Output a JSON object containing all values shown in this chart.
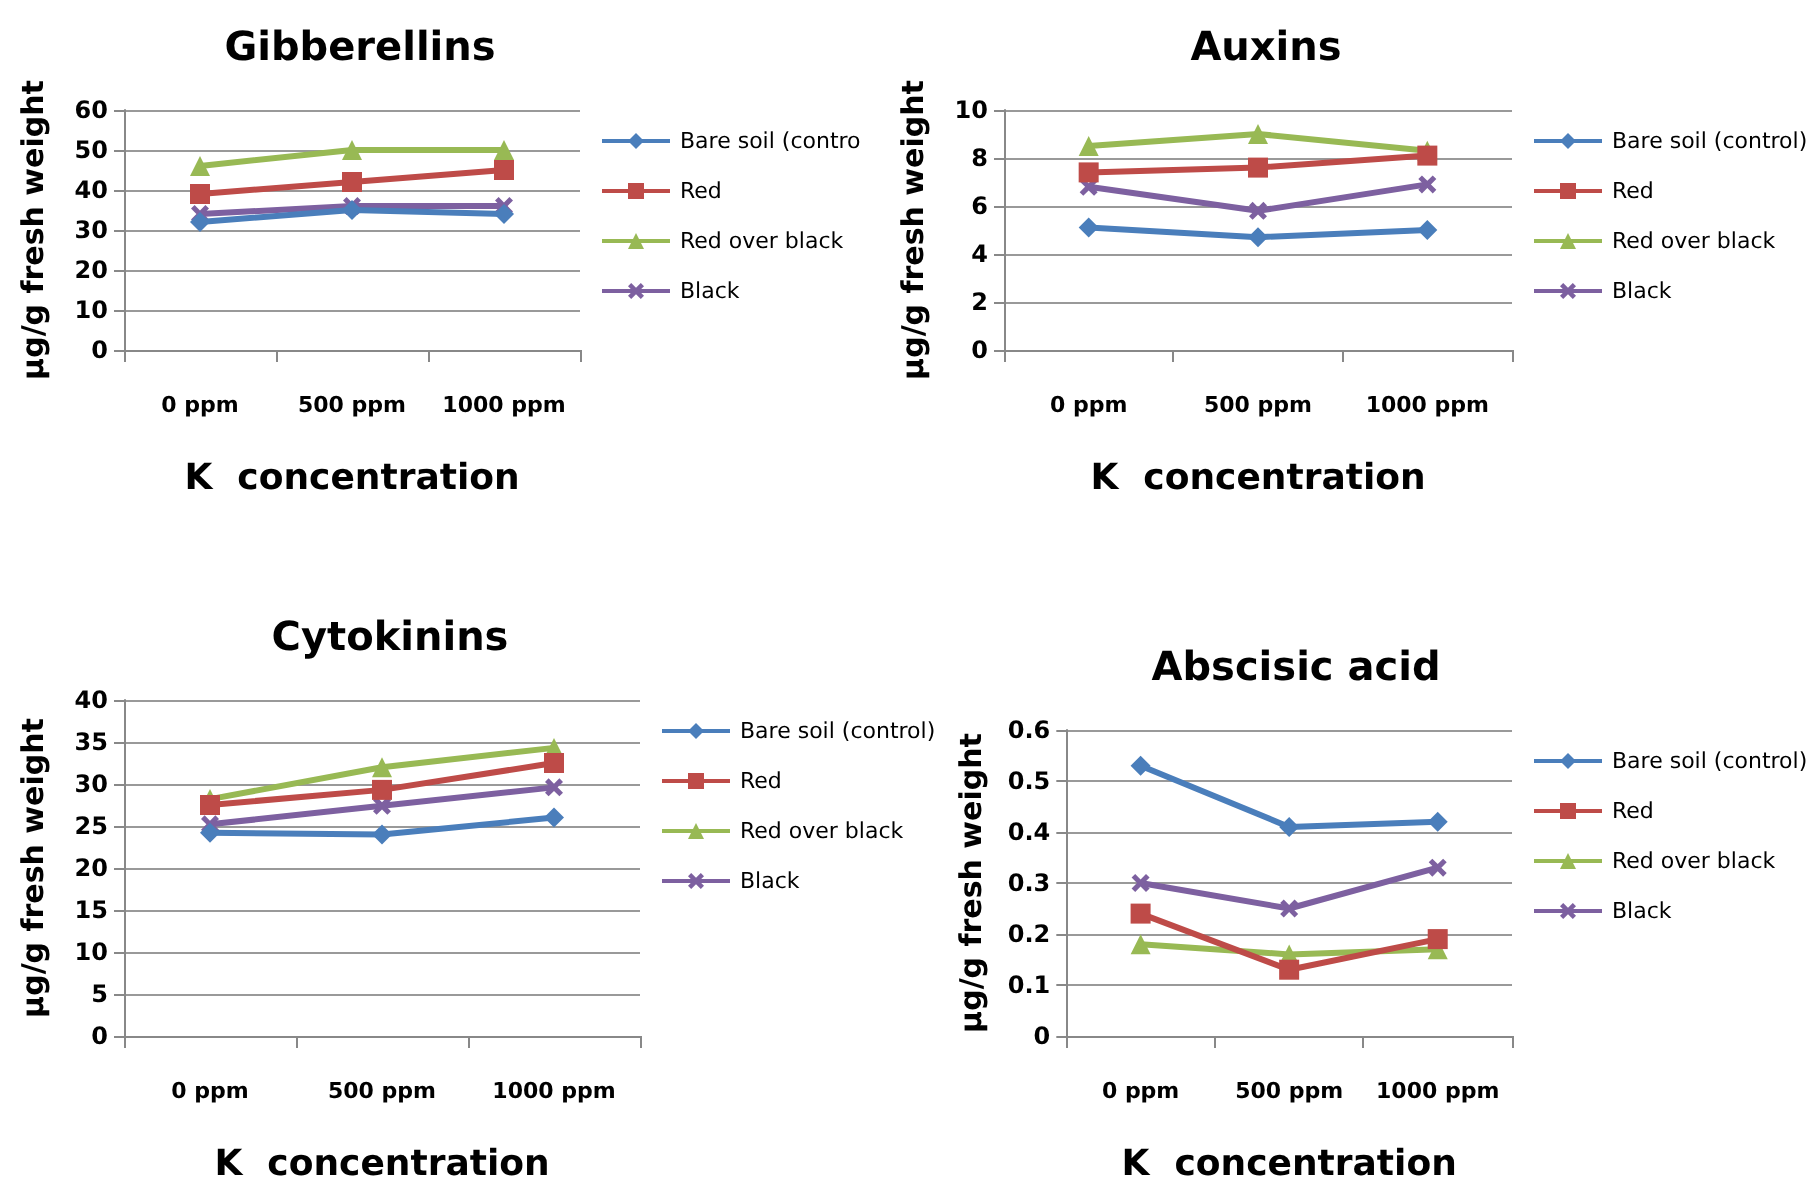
{
  "chart_data": [
    {
      "type": "line",
      "title": "Gibberellins",
      "xlabel": "K  concentration",
      "ylabel": "μg/g fresh weight",
      "categories": [
        "0 ppm",
        "500 ppm",
        "1000 ppm"
      ],
      "ylim": [
        0,
        60
      ],
      "yticks": [
        0,
        10,
        20,
        30,
        40,
        50,
        60
      ],
      "grid": "y",
      "legend": "right",
      "series": [
        {
          "name": "Bare soil (contro",
          "color": "#4a7ebb",
          "marker": "diamond",
          "values": [
            32,
            35,
            34
          ]
        },
        {
          "name": "Red",
          "color": "#be4b48",
          "marker": "square",
          "values": [
            39,
            42,
            45
          ]
        },
        {
          "name": "Red over black",
          "color": "#98b954",
          "marker": "triangle",
          "values": [
            46,
            50,
            50
          ]
        },
        {
          "name": "Black",
          "color": "#7d60a0",
          "marker": "cross",
          "values": [
            34,
            36,
            36
          ]
        }
      ]
    },
    {
      "type": "line",
      "title": "Auxins",
      "xlabel": "K  concentration",
      "ylabel": "μg/g fresh weight",
      "categories": [
        "0 ppm",
        "500 ppm",
        "1000 ppm"
      ],
      "ylim": [
        0,
        10
      ],
      "yticks": [
        0,
        2,
        4,
        6,
        8,
        10
      ],
      "grid": "y",
      "legend": "right",
      "series": [
        {
          "name": "Bare soil (control)",
          "color": "#4a7ebb",
          "marker": "diamond",
          "values": [
            5.1,
            4.7,
            5.0
          ]
        },
        {
          "name": "Red",
          "color": "#be4b48",
          "marker": "square",
          "values": [
            7.4,
            7.6,
            8.1
          ]
        },
        {
          "name": "Red over black",
          "color": "#98b954",
          "marker": "triangle",
          "values": [
            8.5,
            9.0,
            8.3
          ]
        },
        {
          "name": "Black",
          "color": "#7d60a0",
          "marker": "cross",
          "values": [
            6.8,
            5.8,
            6.9
          ]
        }
      ]
    },
    {
      "type": "line",
      "title": "Cytokinins",
      "xlabel": "K  concentration",
      "ylabel": "μg/g fresh weight",
      "categories": [
        "0 ppm",
        "500 ppm",
        "1000 ppm"
      ],
      "ylim": [
        0,
        40
      ],
      "yticks": [
        0,
        5,
        10,
        15,
        20,
        25,
        30,
        35,
        40
      ],
      "grid": "y",
      "legend": "right",
      "series": [
        {
          "name": "Bare soil (control)",
          "color": "#4a7ebb",
          "marker": "diamond",
          "values": [
            24.2,
            24.0,
            26.0
          ]
        },
        {
          "name": "Red",
          "color": "#be4b48",
          "marker": "square",
          "values": [
            27.5,
            29.3,
            32.5
          ]
        },
        {
          "name": "Red over black",
          "color": "#98b954",
          "marker": "triangle",
          "values": [
            28.2,
            32.0,
            34.3
          ]
        },
        {
          "name": "Black",
          "color": "#7d60a0",
          "marker": "cross",
          "values": [
            25.2,
            27.4,
            29.6
          ]
        }
      ]
    },
    {
      "type": "line",
      "title": "Abscisic acid",
      "xlabel": "K  concentration",
      "ylabel": "μg/g fresh weight",
      "categories": [
        "0 ppm",
        "500 ppm",
        "1000 ppm"
      ],
      "ylim": [
        0,
        0.6
      ],
      "yticks": [
        0,
        0.1,
        0.2,
        0.3,
        0.4,
        0.5,
        0.6
      ],
      "grid": "y",
      "legend": "right",
      "series": [
        {
          "name": "Bare soil (control)",
          "color": "#4a7ebb",
          "marker": "diamond",
          "values": [
            0.53,
            0.41,
            0.42
          ]
        },
        {
          "name": "Red",
          "color": "#be4b48",
          "marker": "square",
          "values": [
            0.24,
            0.13,
            0.19
          ]
        },
        {
          "name": "Red over black",
          "color": "#98b954",
          "marker": "triangle",
          "values": [
            0.18,
            0.16,
            0.17
          ]
        },
        {
          "name": "Black",
          "color": "#7d60a0",
          "marker": "cross",
          "values": [
            0.3,
            0.25,
            0.33
          ]
        }
      ]
    }
  ]
}
